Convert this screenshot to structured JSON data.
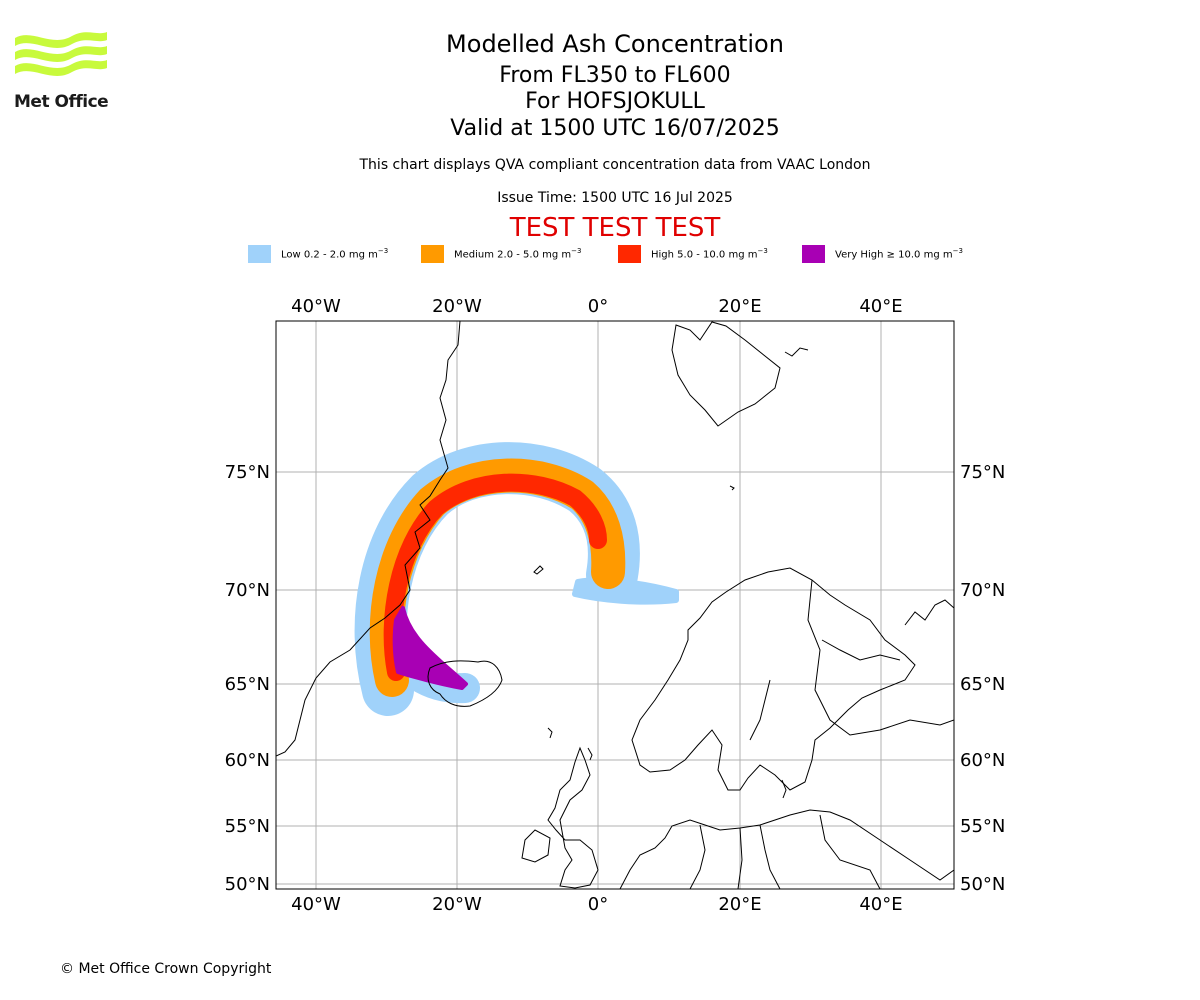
{
  "header": {
    "brand_text": "Met Office",
    "brand_color": "#c8fa3c",
    "title": "Modelled Ash Concentration",
    "subtitle_levels": "From FL350 to FL600",
    "subtitle_volcano": "For HOFSJOKULL",
    "valid_time": "Valid at 1500 UTC 16/07/2025",
    "compliance_note": "This chart displays QVA compliant concentration data from VAAC London",
    "issue_time": "Issue Time: 1500 UTC 16 Jul 2025",
    "test_banner": "TEST TEST TEST",
    "test_banner_color": "#e00000"
  },
  "legend": [
    {
      "label": "Low 0.2 - 2.0 mg m",
      "color": "#a0d2fa"
    },
    {
      "label": "Medium 2.0 - 5.0 mg m",
      "color": "#ff9a00"
    },
    {
      "label": "High 5.0 - 10.0 mg m",
      "color": "#ff2800"
    },
    {
      "label": "Very High ≥ 10.0 mg m",
      "color": "#a800b4"
    }
  ],
  "legend_unit_exponent": "−3",
  "map": {
    "longitude_labels": [
      "40°W",
      "20°W",
      "0°",
      "20°E",
      "40°E"
    ],
    "latitude_labels": [
      "75°N",
      "70°N",
      "65°N",
      "60°N",
      "55°N",
      "50°N"
    ],
    "features": [
      "Greenland",
      "Iceland",
      "Svalbard",
      "Scandinavia",
      "British Isles",
      "Europe"
    ]
  },
  "footer": {
    "copyright": "© Met Office Crown Copyright"
  }
}
